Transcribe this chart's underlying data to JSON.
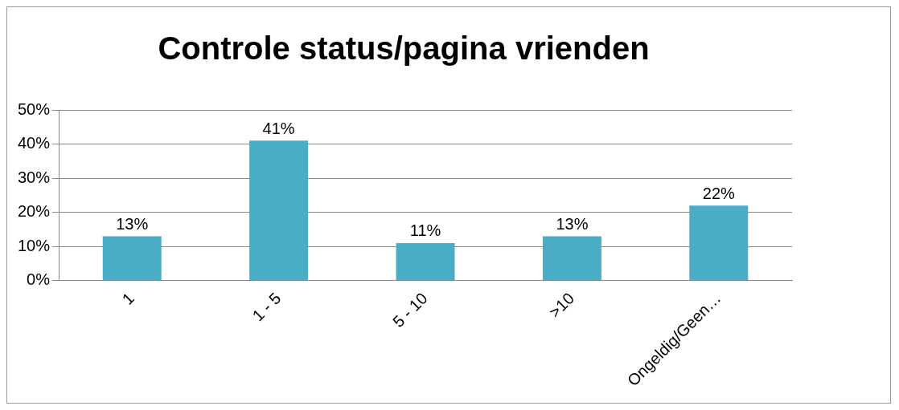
{
  "chart_data": {
    "type": "bar",
    "title": "Controle status/pagina vrienden",
    "categories": [
      "1",
      "1 - 5",
      "5 - 10",
      ">10",
      "Ongeldig/Geen…"
    ],
    "values": [
      13,
      41,
      11,
      13,
      22
    ],
    "value_labels": [
      "13%",
      "41%",
      "11%",
      "13%",
      "22%"
    ],
    "color": "#4bacc6",
    "ylim": [
      0,
      50
    ],
    "yticks": [
      {
        "value": 0,
        "label": "0%"
      },
      {
        "value": 10,
        "label": "10%"
      },
      {
        "value": 20,
        "label": "20%"
      },
      {
        "value": 30,
        "label": "30%"
      },
      {
        "value": 40,
        "label": "40%"
      },
      {
        "value": 50,
        "label": "50%"
      }
    ],
    "grid": "y",
    "legend": false
  }
}
